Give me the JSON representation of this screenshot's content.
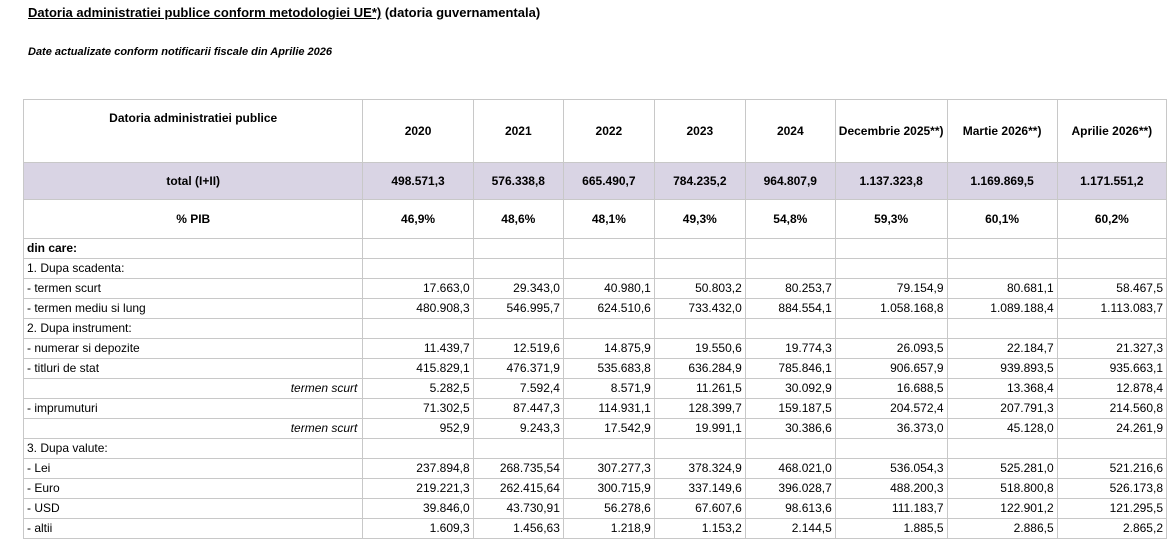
{
  "header": {
    "title_main": "Datoria administratiei publice conform metodologiei UE*)",
    "title_rest": " (datoria guvernamentala)",
    "subtitle": "Date actualizate conform notificarii fiscale din Aprilie 2026"
  },
  "table": {
    "corner_label": "Datoria administratiei publice",
    "columns": [
      "2020",
      "2021",
      "2022",
      "2023",
      "2024",
      "Decembrie 2025**)",
      "Martie 2026**)",
      "Aprilie 2026**)"
    ],
    "total": {
      "label": "total (I+II)",
      "values": [
        "498.571,3",
        "576.338,8",
        "665.490,7",
        "784.235,2",
        "964.807,9",
        "1.137.323,8",
        "1.169.869,5",
        "1.171.551,2"
      ]
    },
    "pib": {
      "label": "% PIB",
      "values": [
        "46,9%",
        "48,6%",
        "48,1%",
        "49,3%",
        "54,8%",
        "59,3%",
        "60,1%",
        "60,2%"
      ]
    },
    "rows": [
      {
        "label": "din care:",
        "kind": "dincare",
        "values": [
          "",
          "",
          "",
          "",
          "",
          "",
          "",
          ""
        ]
      },
      {
        "label": "1. Dupa scadenta:",
        "kind": "section",
        "values": [
          "",
          "",
          "",
          "",
          "",
          "",
          "",
          ""
        ]
      },
      {
        "label": " - termen scurt",
        "kind": "item",
        "values": [
          "17.663,0",
          "29.343,0",
          "40.980,1",
          "50.803,2",
          "80.253,7",
          "79.154,9",
          "80.681,1",
          "58.467,5"
        ]
      },
      {
        "label": " - termen mediu si lung",
        "kind": "item",
        "values": [
          "480.908,3",
          "546.995,7",
          "624.510,6",
          "733.432,0",
          "884.554,1",
          "1.058.168,8",
          "1.089.188,4",
          "1.113.083,7"
        ]
      },
      {
        "label": "2. Dupa instrument:",
        "kind": "section",
        "values": [
          "",
          "",
          "",
          "",
          "",
          "",
          "",
          ""
        ]
      },
      {
        "label": " - numerar si depozite",
        "kind": "item",
        "values": [
          "11.439,7",
          "12.519,6",
          "14.875,9",
          "19.550,6",
          "19.774,3",
          "26.093,5",
          "22.184,7",
          "21.327,3"
        ]
      },
      {
        "label": " - titluri de stat",
        "kind": "item",
        "values": [
          "415.829,1",
          "476.371,9",
          "535.683,8",
          "636.284,9",
          "785.846,1",
          "906.657,9",
          "939.893,5",
          "935.663,1"
        ]
      },
      {
        "label": "termen scurt",
        "kind": "sub",
        "values": [
          "5.282,5",
          "7.592,4",
          "8.571,9",
          "11.261,5",
          "30.092,9",
          "16.688,5",
          "13.368,4",
          "12.878,4"
        ]
      },
      {
        "label": " - imprumuturi",
        "kind": "item",
        "values": [
          "71.302,5",
          "87.447,3",
          "114.931,1",
          "128.399,7",
          "159.187,5",
          "204.572,4",
          "207.791,3",
          "214.560,8"
        ]
      },
      {
        "label": "termen scurt",
        "kind": "sub",
        "values": [
          "952,9",
          "9.243,3",
          "17.542,9",
          "19.991,1",
          "30.386,6",
          "36.373,0",
          "45.128,0",
          "24.261,9"
        ]
      },
      {
        "label": "3. Dupa valute:",
        "kind": "section",
        "values": [
          "",
          "",
          "",
          "",
          "",
          "",
          "",
          ""
        ]
      },
      {
        "label": " - Lei",
        "kind": "item",
        "values": [
          "237.894,8",
          "268.735,54",
          "307.277,3",
          "378.324,9",
          "468.021,0",
          "536.054,3",
          "525.281,0",
          "521.216,6"
        ]
      },
      {
        "label": " - Euro",
        "kind": "item",
        "values": [
          "219.221,3",
          "262.415,64",
          "300.715,9",
          "337.149,6",
          "396.028,7",
          "488.200,3",
          "518.800,8",
          "526.173,8"
        ]
      },
      {
        "label": " - USD",
        "kind": "item",
        "values": [
          "39.846,0",
          "43.730,91",
          "56.278,6",
          "67.607,6",
          "98.613,6",
          "111.183,7",
          "122.901,2",
          "121.295,5"
        ]
      },
      {
        "label": " - altii",
        "kind": "item",
        "values": [
          "1.609,3",
          "1.456,63",
          "1.218,9",
          "1.153,2",
          "2.144,5",
          "1.885,5",
          "2.886,5",
          "2.865,2"
        ]
      }
    ]
  },
  "colors": {
    "total_row_bg": "#d9d4e4",
    "grid": "#c8c8c8"
  }
}
